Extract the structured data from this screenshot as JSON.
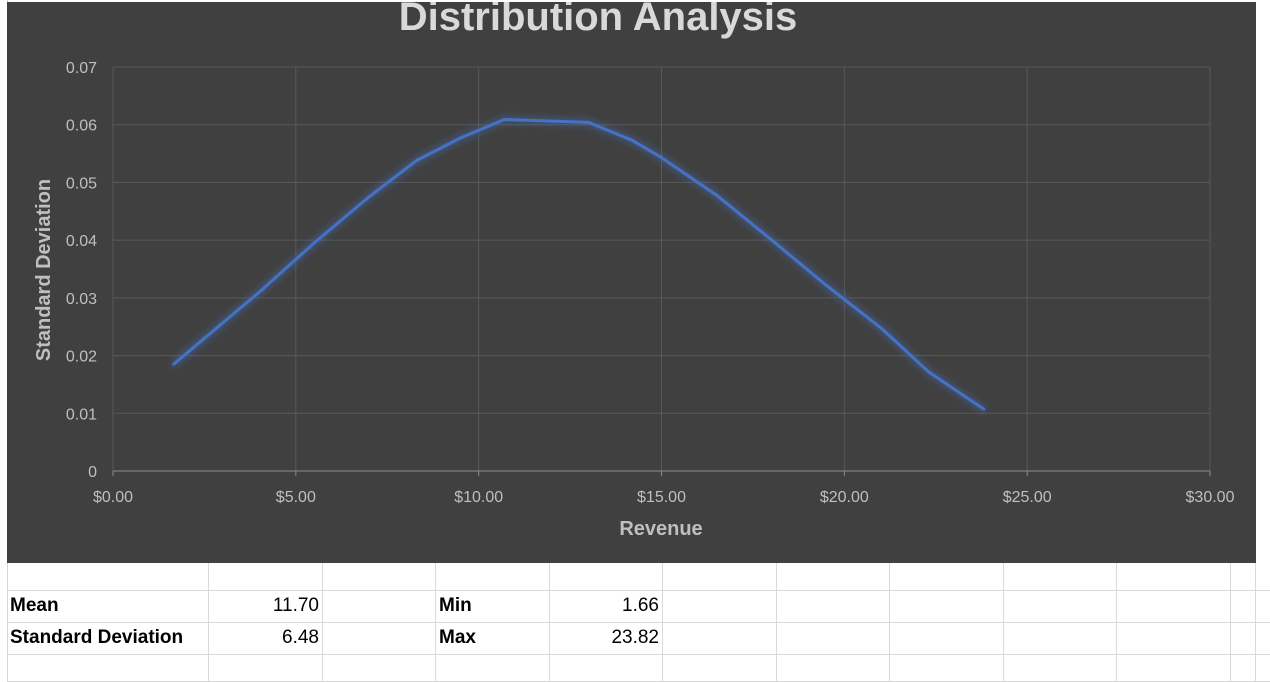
{
  "chart_data": {
    "type": "line",
    "title": "Distribution Analysis",
    "xlabel": "Revenue",
    "ylabel": "Standard Deviation",
    "xlim": [
      0,
      30
    ],
    "ylim": [
      0,
      0.07
    ],
    "x_ticks": [
      "$0.00",
      "$5.00",
      "$10.00",
      "$15.00",
      "$20.00",
      "$25.00",
      "$30.00"
    ],
    "y_ticks": [
      "0",
      "0.01",
      "0.02",
      "0.03",
      "0.04",
      "0.05",
      "0.06",
      "0.07"
    ],
    "grid": true,
    "line_color": "#4472C4",
    "background_color": "#404040",
    "series": [
      {
        "x": [
          1.66,
          2.5,
          4.0,
          5.5,
          7.0,
          8.3,
          9.5,
          10.7,
          13.0,
          14.2,
          15.0,
          16.5,
          18.0,
          19.5,
          21.0,
          22.3,
          23.82
        ],
        "values": [
          0.0185,
          0.023,
          0.031,
          0.0395,
          0.0475,
          0.0538,
          0.0577,
          0.0609,
          0.0604,
          0.0573,
          0.0543,
          0.0478,
          0.0401,
          0.0322,
          0.0248,
          0.0172,
          0.0107
        ]
      }
    ]
  },
  "stats": {
    "mean_label": "Mean",
    "mean_value": "11.70",
    "sd_label": "Standard Deviation",
    "sd_value": "6.48",
    "min_label": "Min",
    "min_value": "1.66",
    "max_label": "Max",
    "max_value": "23.82"
  }
}
